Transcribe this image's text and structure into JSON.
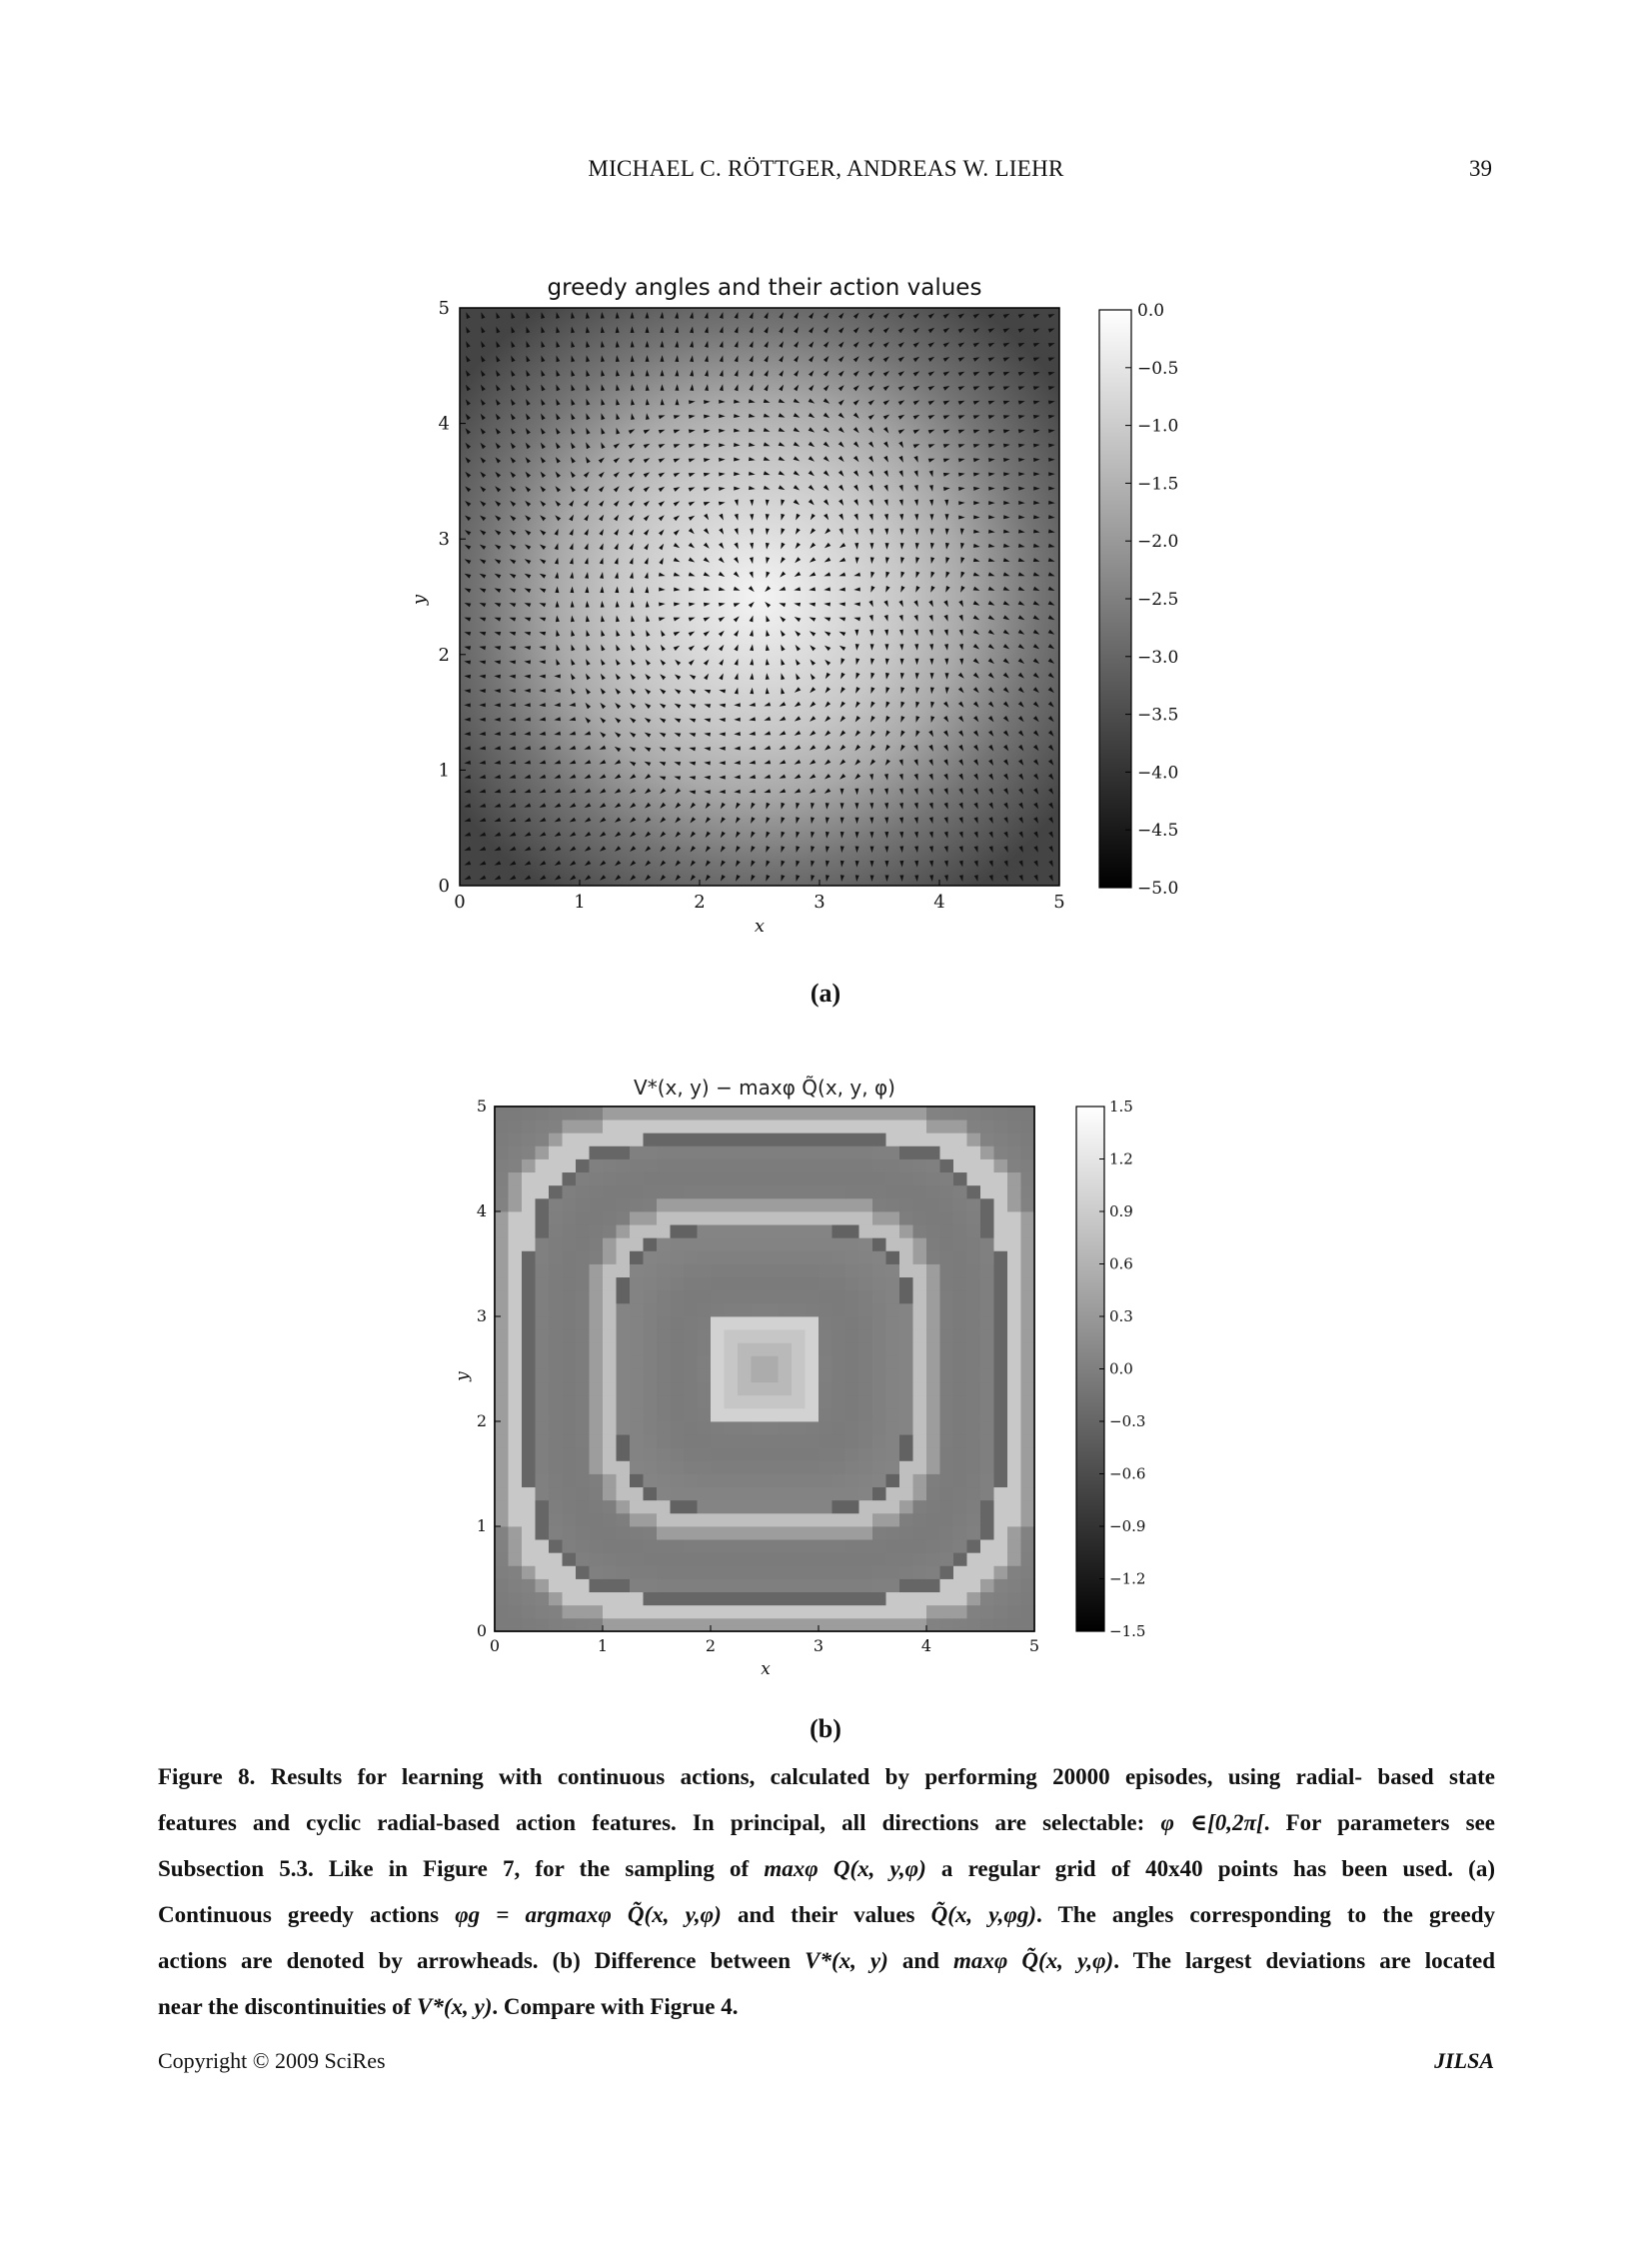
{
  "header": {
    "running_head": "MICHAEL C. RÖTTGER, ANDREAS W. LIEHR",
    "page_number": "39"
  },
  "figure_a": {
    "sublabel": "(a)",
    "colorbar_gradient": [
      "#000000",
      "#ffffff"
    ],
    "chart_data": {
      "type": "heatmap",
      "title": "greedy angles and their action values",
      "xlabel": "x",
      "ylabel": "y",
      "xlim": [
        0,
        5
      ],
      "ylim": [
        0,
        5
      ],
      "xticks": [
        "0",
        "1",
        "2",
        "3",
        "4",
        "5"
      ],
      "yticks": [
        "0",
        "1",
        "2",
        "3",
        "4",
        "5"
      ],
      "grid_points": "40x40",
      "overlay": "quiver arrowheads (greedy angles)",
      "colorbar": {
        "range": [
          -5.0,
          0.0
        ],
        "ticks": [
          "0.0",
          "−0.5",
          "−1.0",
          "−1.5",
          "−2.0",
          "−2.5",
          "−3.0",
          "−3.5",
          "−4.0",
          "−4.5",
          "−5.0"
        ]
      }
    }
  },
  "figure_b": {
    "sublabel": "(b)",
    "colorbar_gradient": [
      "#000000",
      "#ffffff"
    ],
    "chart_data": {
      "type": "heatmap",
      "title": "V*(x, y) − maxφ Q̃(x, y, φ)",
      "xlabel": "x",
      "ylabel": "y",
      "xlim": [
        0,
        5
      ],
      "ylim": [
        0,
        5
      ],
      "xticks": [
        "0",
        "1",
        "2",
        "3",
        "4",
        "5"
      ],
      "yticks": [
        "0",
        "1",
        "2",
        "3",
        "4",
        "5"
      ],
      "grid_points": "40x40",
      "colorbar": {
        "range": [
          -1.5,
          1.5
        ],
        "ticks": [
          "1.5",
          "1.2",
          "0.9",
          "0.6",
          "0.3",
          "0.0",
          "−0.3",
          "−0.6",
          "−0.9",
          "−1.2",
          "−1.5"
        ]
      }
    }
  },
  "caption": {
    "l1": "Figure 8. Results for learning with continuous actions, calculated by performing 20000 episodes, using radial- based state",
    "l2a": "features and cyclic radial-based action features. In principal, all directions are selectable:",
    "l2eq": "φ ∈[0,2π[",
    "l2b": ". For parameters see",
    "l3a": "Subsection 5.3. Like in Figure 7, for the sampling of",
    "l3eq": "maxφ Q(x, y,φ)",
    "l3b": "a regular grid of 40x40 points has been used. (a)",
    "l4a": "Continuous greedy actions",
    "l4eq1": "φg = argmaxφ Q̃(x, y,φ)",
    "l4b": "and their values",
    "l4eq2": "Q̃(x, y,φg)",
    "l4c": ". The angles corresponding to the greedy",
    "l5a": "actions are denoted by arrowheads. (b) Difference between",
    "l5eq1": "V*(x, y)",
    "l5b": "and",
    "l5eq2": "maxφ Q̃(x, y,φ)",
    "l5c": ". The largest deviations are located",
    "l6a": "near the discontinuities of",
    "l6eq": "V*(x, y)",
    "l6b": ". Compare with Figrue 4."
  },
  "footer": {
    "copyright": "Copyright © 2009 SciRes",
    "journal": "JILSA"
  }
}
